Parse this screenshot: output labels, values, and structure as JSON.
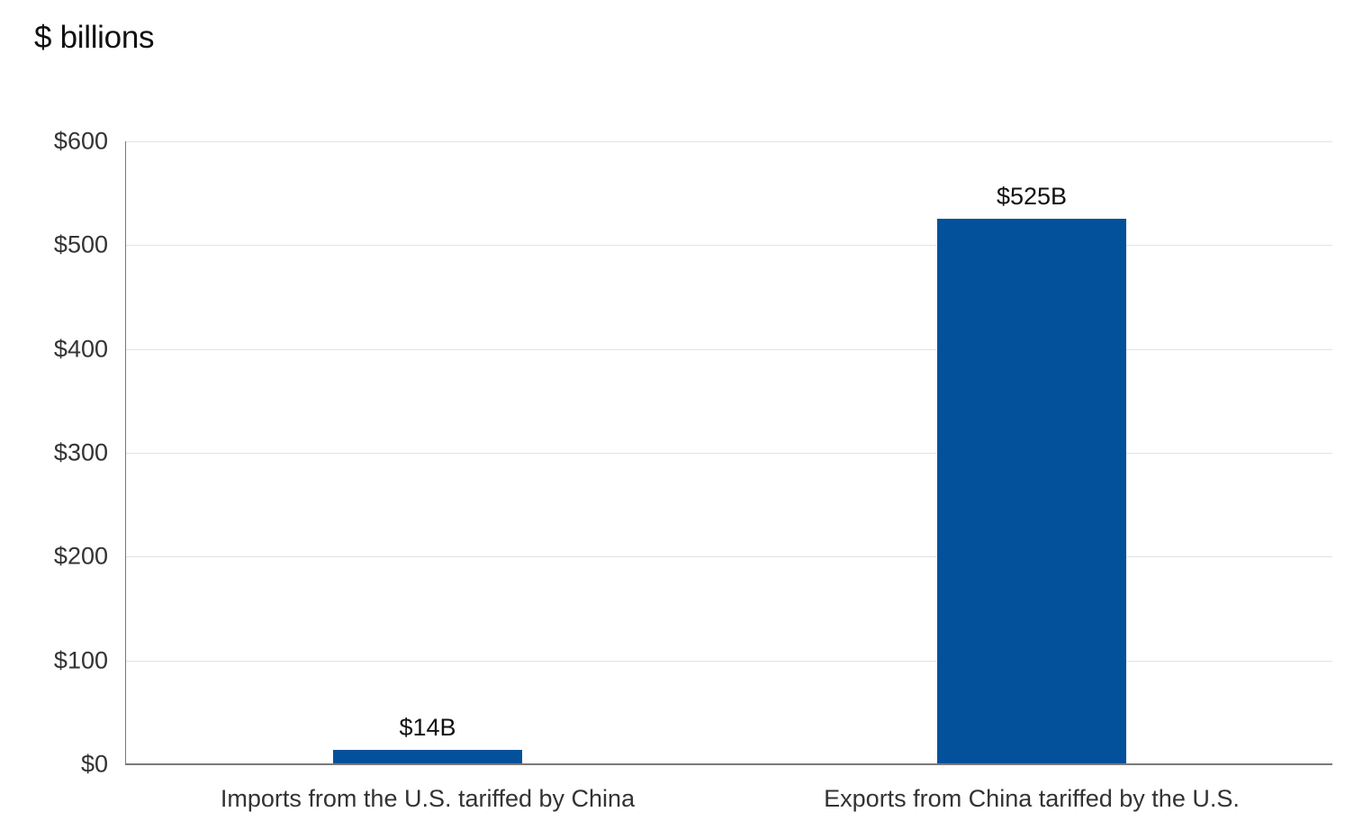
{
  "header": {
    "unit_title": "$ billions"
  },
  "colors": {
    "bar": "#03519B",
    "gridline": "#E3E3E3",
    "axis": "#7A7A7A"
  },
  "y_axis": {
    "ticks": [
      "$0",
      "$100",
      "$200",
      "$300",
      "$400",
      "$500",
      "$600"
    ]
  },
  "bars": [
    {
      "label": "$14B",
      "category": "Imports from the U.S. tariffed by China",
      "value": 14
    },
    {
      "label": "$525B",
      "category": "Exports from China tariffed by the U.S.",
      "value": 525
    }
  ],
  "chart_data": {
    "type": "bar",
    "title": "",
    "subtitle": "$ billions",
    "categories": [
      "Imports from the U.S. tariffed by China",
      "Exports from China tariffed by the U.S."
    ],
    "values": [
      14,
      525
    ],
    "data_labels": [
      "$14B",
      "$525B"
    ],
    "xlabel": "",
    "ylabel": "$ billions",
    "ylim": [
      0,
      600
    ],
    "yticks": [
      0,
      100,
      200,
      300,
      400,
      500,
      600
    ],
    "ytick_labels": [
      "$0",
      "$100",
      "$200",
      "$300",
      "$400",
      "$500",
      "$600"
    ],
    "grid": true,
    "legend": null,
    "colors": [
      "#03519B"
    ]
  }
}
